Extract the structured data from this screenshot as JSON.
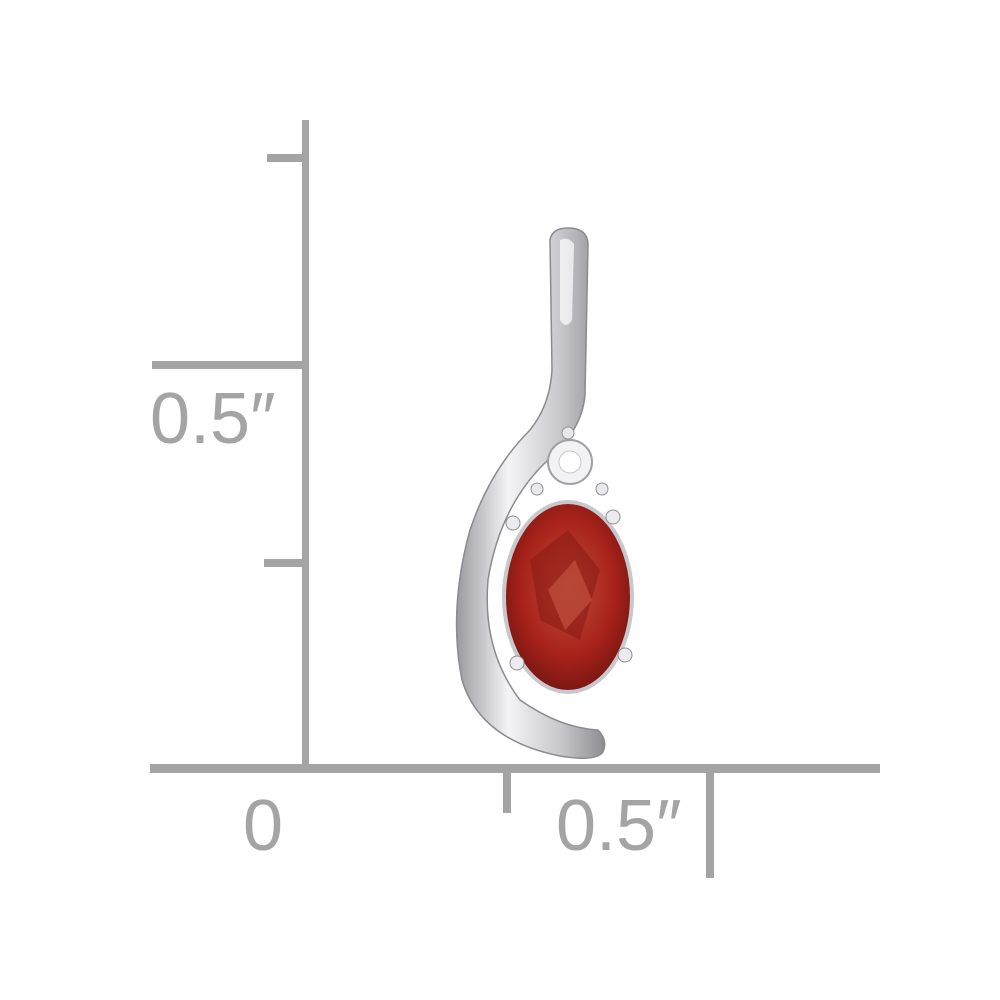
{
  "ruler": {
    "color": "#a4a4a4",
    "vertical_label": "0.5″",
    "horizontal_origin_label": "0",
    "horizontal_label": "0.5″"
  },
  "product": {
    "metal_color": "#d8d8dc",
    "gem_color": "#b0241a",
    "accent_stone_color": "#f4f4f4"
  }
}
